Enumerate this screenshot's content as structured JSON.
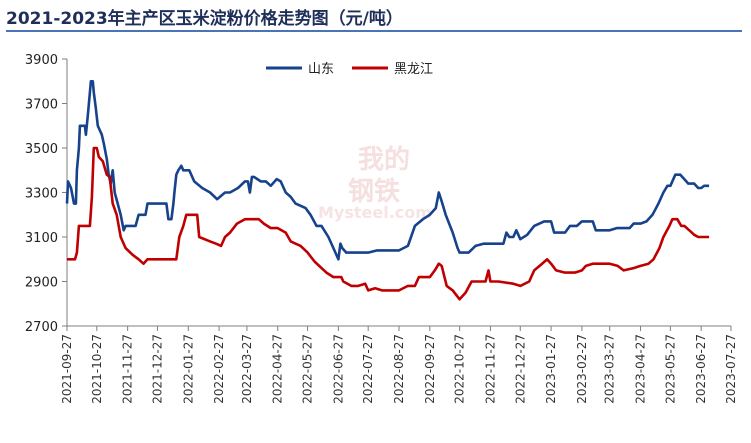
{
  "chart_data": {
    "type": "line",
    "title": "2021-2023年主产区玉米淀粉价格走势图（元/吨）",
    "xlabel": "",
    "ylabel": "",
    "ylim": [
      2700,
      3900
    ],
    "yticks": [
      2700,
      2900,
      3100,
      3300,
      3500,
      3700,
      3900
    ],
    "xlim": [
      "2021-09-27",
      "2023-07-27"
    ],
    "xticks": [
      "2021-09-27",
      "2021-10-27",
      "2021-11-27",
      "2021-12-27",
      "2022-01-27",
      "2022-02-27",
      "2022-03-27",
      "2022-04-27",
      "2022-05-27",
      "2022-06-27",
      "2022-07-27",
      "2022-08-27",
      "2022-09-27",
      "2022-10-27",
      "2022-11-27",
      "2022-12-27",
      "2023-01-27",
      "2023-02-27",
      "2023-03-27",
      "2023-04-27",
      "2023-05-27",
      "2023-06-27",
      "2023-07-27"
    ],
    "legend_position": "top-center",
    "grid": false,
    "series": [
      {
        "name": "山东",
        "color": "#17428C",
        "points": [
          [
            "2021-09-27",
            3250
          ],
          [
            "2021-09-28",
            3350
          ],
          [
            "2021-10-01",
            3320
          ],
          [
            "2021-10-04",
            3250
          ],
          [
            "2021-10-06",
            3250
          ],
          [
            "2021-10-07",
            3400
          ],
          [
            "2021-10-09",
            3500
          ],
          [
            "2021-10-10",
            3600
          ],
          [
            "2021-10-15",
            3600
          ],
          [
            "2021-10-16",
            3560
          ],
          [
            "2021-10-18",
            3650
          ],
          [
            "2021-10-19",
            3700
          ],
          [
            "2021-10-21",
            3800
          ],
          [
            "2021-10-23",
            3800
          ],
          [
            "2021-10-24",
            3750
          ],
          [
            "2021-10-26",
            3680
          ],
          [
            "2021-10-28",
            3600
          ],
          [
            "2021-11-01",
            3560
          ],
          [
            "2021-11-03",
            3520
          ],
          [
            "2021-11-06",
            3450
          ],
          [
            "2021-11-08",
            3380
          ],
          [
            "2021-11-10",
            3340
          ],
          [
            "2021-11-12",
            3400
          ],
          [
            "2021-11-14",
            3300
          ],
          [
            "2021-11-17",
            3250
          ],
          [
            "2021-11-20",
            3200
          ],
          [
            "2021-11-23",
            3130
          ],
          [
            "2021-11-25",
            3150
          ],
          [
            "2021-12-05",
            3150
          ],
          [
            "2021-12-08",
            3200
          ],
          [
            "2021-12-15",
            3200
          ],
          [
            "2021-12-17",
            3250
          ],
          [
            "2022-01-05",
            3250
          ],
          [
            "2022-01-07",
            3180
          ],
          [
            "2022-01-10",
            3180
          ],
          [
            "2022-01-12",
            3250
          ],
          [
            "2022-01-13",
            3300
          ],
          [
            "2022-01-15",
            3380
          ],
          [
            "2022-01-17",
            3400
          ],
          [
            "2022-01-20",
            3420
          ],
          [
            "2022-01-22",
            3400
          ],
          [
            "2022-01-28",
            3400
          ],
          [
            "2022-02-02",
            3350
          ],
          [
            "2022-02-10",
            3320
          ],
          [
            "2022-02-18",
            3300
          ],
          [
            "2022-02-25",
            3270
          ],
          [
            "2022-03-05",
            3300
          ],
          [
            "2022-03-10",
            3300
          ],
          [
            "2022-03-18",
            3320
          ],
          [
            "2022-03-25",
            3350
          ],
          [
            "2022-03-28",
            3350
          ],
          [
            "2022-03-30",
            3300
          ],
          [
            "2022-04-01",
            3370
          ],
          [
            "2022-04-03",
            3370
          ],
          [
            "2022-04-10",
            3350
          ],
          [
            "2022-04-15",
            3350
          ],
          [
            "2022-04-20",
            3330
          ],
          [
            "2022-04-26",
            3360
          ],
          [
            "2022-04-30",
            3350
          ],
          [
            "2022-05-05",
            3300
          ],
          [
            "2022-05-10",
            3280
          ],
          [
            "2022-05-15",
            3250
          ],
          [
            "2022-05-25",
            3230
          ],
          [
            "2022-05-30",
            3200
          ],
          [
            "2022-06-05",
            3150
          ],
          [
            "2022-06-10",
            3150
          ],
          [
            "2022-06-17",
            3100
          ],
          [
            "2022-06-22",
            3050
          ],
          [
            "2022-06-27",
            3000
          ],
          [
            "2022-06-29",
            3070
          ],
          [
            "2022-07-01",
            3050
          ],
          [
            "2022-07-05",
            3030
          ],
          [
            "2022-07-15",
            3030
          ],
          [
            "2022-07-27",
            3030
          ],
          [
            "2022-08-05",
            3040
          ],
          [
            "2022-08-27",
            3040
          ],
          [
            "2022-09-05",
            3060
          ],
          [
            "2022-09-12",
            3150
          ],
          [
            "2022-09-20",
            3180
          ],
          [
            "2022-09-27",
            3200
          ],
          [
            "2022-10-03",
            3230
          ],
          [
            "2022-10-06",
            3300
          ],
          [
            "2022-10-09",
            3260
          ],
          [
            "2022-10-13",
            3200
          ],
          [
            "2022-10-20",
            3120
          ],
          [
            "2022-10-25",
            3050
          ],
          [
            "2022-10-27",
            3030
          ],
          [
            "2022-11-05",
            3030
          ],
          [
            "2022-11-12",
            3060
          ],
          [
            "2022-11-20",
            3070
          ],
          [
            "2022-12-10",
            3070
          ],
          [
            "2022-12-13",
            3120
          ],
          [
            "2022-12-16",
            3100
          ],
          [
            "2022-12-20",
            3100
          ],
          [
            "2022-12-23",
            3130
          ],
          [
            "2022-12-27",
            3090
          ],
          [
            "2023-01-03",
            3110
          ],
          [
            "2023-01-10",
            3150
          ],
          [
            "2023-01-20",
            3170
          ],
          [
            "2023-01-27",
            3170
          ],
          [
            "2023-01-30",
            3120
          ],
          [
            "2023-02-10",
            3120
          ],
          [
            "2023-02-15",
            3150
          ],
          [
            "2023-02-22",
            3150
          ],
          [
            "2023-02-27",
            3170
          ],
          [
            "2023-03-10",
            3170
          ],
          [
            "2023-03-13",
            3130
          ],
          [
            "2023-03-27",
            3130
          ],
          [
            "2023-04-03",
            3140
          ],
          [
            "2023-04-10",
            3140
          ],
          [
            "2023-04-16",
            3140
          ],
          [
            "2023-04-20",
            3160
          ],
          [
            "2023-04-27",
            3160
          ],
          [
            "2023-05-03",
            3170
          ],
          [
            "2023-05-09",
            3200
          ],
          [
            "2023-05-15",
            3250
          ],
          [
            "2023-05-20",
            3300
          ],
          [
            "2023-05-24",
            3330
          ],
          [
            "2023-05-27",
            3330
          ],
          [
            "2023-06-01",
            3380
          ],
          [
            "2023-06-06",
            3380
          ],
          [
            "2023-06-10",
            3360
          ],
          [
            "2023-06-14",
            3340
          ],
          [
            "2023-06-20",
            3340
          ],
          [
            "2023-06-24",
            3320
          ],
          [
            "2023-06-27",
            3320
          ],
          [
            "2023-06-30",
            3330
          ],
          [
            "2023-07-05",
            3330
          ]
        ]
      },
      {
        "name": "黑龙江",
        "color": "#C00000",
        "points": [
          [
            "2021-09-27",
            3000
          ],
          [
            "2021-10-05",
            3000
          ],
          [
            "2021-10-07",
            3030
          ],
          [
            "2021-10-09",
            3150
          ],
          [
            "2021-10-20",
            3150
          ],
          [
            "2021-10-22",
            3280
          ],
          [
            "2021-10-24",
            3500
          ],
          [
            "2021-10-27",
            3500
          ],
          [
            "2021-10-29",
            3460
          ],
          [
            "2021-11-02",
            3440
          ],
          [
            "2021-11-06",
            3380
          ],
          [
            "2021-11-09",
            3370
          ],
          [
            "2021-11-12",
            3250
          ],
          [
            "2021-11-16",
            3200
          ],
          [
            "2021-11-20",
            3100
          ],
          [
            "2021-11-25",
            3050
          ],
          [
            "2021-12-02",
            3020
          ],
          [
            "2021-12-08",
            3000
          ],
          [
            "2021-12-13",
            2980
          ],
          [
            "2021-12-17",
            3000
          ],
          [
            "2022-01-15",
            3000
          ],
          [
            "2022-01-18",
            3100
          ],
          [
            "2022-01-22",
            3150
          ],
          [
            "2022-01-25",
            3200
          ],
          [
            "2022-02-05",
            3200
          ],
          [
            "2022-02-07",
            3100
          ],
          [
            "2022-02-18",
            3080
          ],
          [
            "2022-02-24",
            3070
          ],
          [
            "2022-03-01",
            3060
          ],
          [
            "2022-03-05",
            3100
          ],
          [
            "2022-03-10",
            3120
          ],
          [
            "2022-03-17",
            3160
          ],
          [
            "2022-03-25",
            3180
          ],
          [
            "2022-04-05",
            3180
          ],
          [
            "2022-04-08",
            3180
          ],
          [
            "2022-04-13",
            3160
          ],
          [
            "2022-04-20",
            3140
          ],
          [
            "2022-04-27",
            3140
          ],
          [
            "2022-05-05",
            3120
          ],
          [
            "2022-05-10",
            3080
          ],
          [
            "2022-05-20",
            3060
          ],
          [
            "2022-05-27",
            3030
          ],
          [
            "2022-06-03",
            2990
          ],
          [
            "2022-06-10",
            2960
          ],
          [
            "2022-06-15",
            2940
          ],
          [
            "2022-06-22",
            2920
          ],
          [
            "2022-06-30",
            2920
          ],
          [
            "2022-07-02",
            2900
          ],
          [
            "2022-07-10",
            2880
          ],
          [
            "2022-07-17",
            2880
          ],
          [
            "2022-07-24",
            2890
          ],
          [
            "2022-07-27",
            2860
          ],
          [
            "2022-08-03",
            2870
          ],
          [
            "2022-08-10",
            2860
          ],
          [
            "2022-08-27",
            2860
          ],
          [
            "2022-09-05",
            2880
          ],
          [
            "2022-09-12",
            2880
          ],
          [
            "2022-09-16",
            2920
          ],
          [
            "2022-09-22",
            2920
          ],
          [
            "2022-09-27",
            2920
          ],
          [
            "2022-10-02",
            2950
          ],
          [
            "2022-10-06",
            2980
          ],
          [
            "2022-10-09",
            2970
          ],
          [
            "2022-10-14",
            2880
          ],
          [
            "2022-10-20",
            2860
          ],
          [
            "2022-10-27",
            2820
          ],
          [
            "2022-11-02",
            2850
          ],
          [
            "2022-11-08",
            2900
          ],
          [
            "2022-11-22",
            2900
          ],
          [
            "2022-11-25",
            2950
          ],
          [
            "2022-11-27",
            2900
          ],
          [
            "2022-12-05",
            2900
          ],
          [
            "2022-12-20",
            2890
          ],
          [
            "2022-12-27",
            2880
          ],
          [
            "2023-01-05",
            2900
          ],
          [
            "2023-01-10",
            2950
          ],
          [
            "2023-01-18",
            2980
          ],
          [
            "2023-01-23",
            3000
          ],
          [
            "2023-01-27",
            2980
          ],
          [
            "2023-02-01",
            2950
          ],
          [
            "2023-02-10",
            2940
          ],
          [
            "2023-02-20",
            2940
          ],
          [
            "2023-02-27",
            2950
          ],
          [
            "2023-03-03",
            2970
          ],
          [
            "2023-03-10",
            2980
          ],
          [
            "2023-03-27",
            2980
          ],
          [
            "2023-04-04",
            2970
          ],
          [
            "2023-04-10",
            2950
          ],
          [
            "2023-04-20",
            2960
          ],
          [
            "2023-04-27",
            2970
          ],
          [
            "2023-05-05",
            2980
          ],
          [
            "2023-05-10",
            3000
          ],
          [
            "2023-05-16",
            3050
          ],
          [
            "2023-05-20",
            3100
          ],
          [
            "2023-05-26",
            3150
          ],
          [
            "2023-05-29",
            3180
          ],
          [
            "2023-06-03",
            3180
          ],
          [
            "2023-06-07",
            3150
          ],
          [
            "2023-06-10",
            3150
          ],
          [
            "2023-06-15",
            3130
          ],
          [
            "2023-06-20",
            3110
          ],
          [
            "2023-06-24",
            3100
          ],
          [
            "2023-06-27",
            3100
          ],
          [
            "2023-07-05",
            3100
          ]
        ]
      }
    ]
  }
}
